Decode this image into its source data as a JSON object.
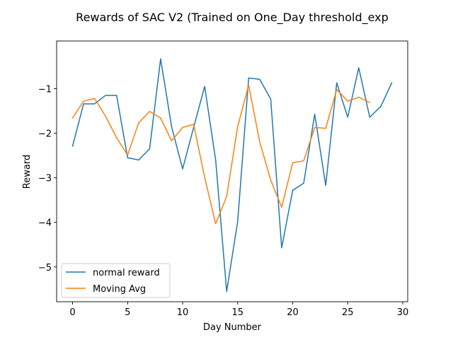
{
  "chart_data": {
    "type": "line",
    "title": "Rewards of SAC V2 (Trained on One_Day threshold_exp",
    "xlabel": "Day Number",
    "ylabel": "Reward",
    "xlim": [
      -1.45,
      30.45
    ],
    "ylim": [
      -5.78,
      0.07
    ],
    "x_ticks": [
      0,
      5,
      10,
      15,
      20,
      25,
      30
    ],
    "x_tick_labels": [
      "0",
      "5",
      "10",
      "15",
      "20",
      "25",
      "30"
    ],
    "y_ticks": [
      -5,
      -4,
      -3,
      -2,
      -1
    ],
    "y_tick_labels": [
      "−5",
      "−4",
      "−3",
      "−2",
      "−1"
    ],
    "grid": false,
    "legend_position": "lower-left",
    "series": [
      {
        "name": "normal reward",
        "color": "#1f77b4",
        "x": [
          0,
          1,
          2,
          3,
          4,
          5,
          6,
          7,
          8,
          9,
          10,
          11,
          12,
          13,
          14,
          15,
          16,
          17,
          18,
          19,
          20,
          21,
          22,
          23,
          24,
          25,
          26,
          27,
          28,
          29
        ],
        "values": [
          -2.29,
          -1.34,
          -1.34,
          -1.15,
          -1.15,
          -2.55,
          -2.6,
          -2.35,
          -0.33,
          -1.86,
          -2.8,
          -1.87,
          -0.95,
          -2.6,
          -5.55,
          -3.98,
          -0.76,
          -0.79,
          -1.23,
          -4.57,
          -3.28,
          -3.12,
          -1.57,
          -3.17,
          -0.87,
          -1.64,
          -0.53,
          -1.64,
          -1.4,
          -0.87
        ]
      },
      {
        "name": "Moving Avg",
        "color": "#ff7f0e",
        "x": [
          0,
          1,
          2,
          3,
          4,
          5,
          6,
          7,
          8,
          9,
          10,
          11,
          12,
          13,
          14,
          15,
          16,
          17,
          18,
          19,
          20,
          21,
          22,
          23,
          24,
          25,
          26,
          27
        ],
        "values": [
          -1.66,
          -1.28,
          -1.22,
          -1.62,
          -2.1,
          -2.49,
          -1.77,
          -1.51,
          -1.66,
          -2.17,
          -1.87,
          -1.8,
          -2.99,
          -4.03,
          -3.42,
          -1.85,
          -0.92,
          -2.19,
          -3.05,
          -3.66,
          -2.66,
          -2.62,
          -1.87,
          -1.89,
          -1.02,
          -1.28,
          -1.19,
          -1.31
        ]
      }
    ]
  }
}
